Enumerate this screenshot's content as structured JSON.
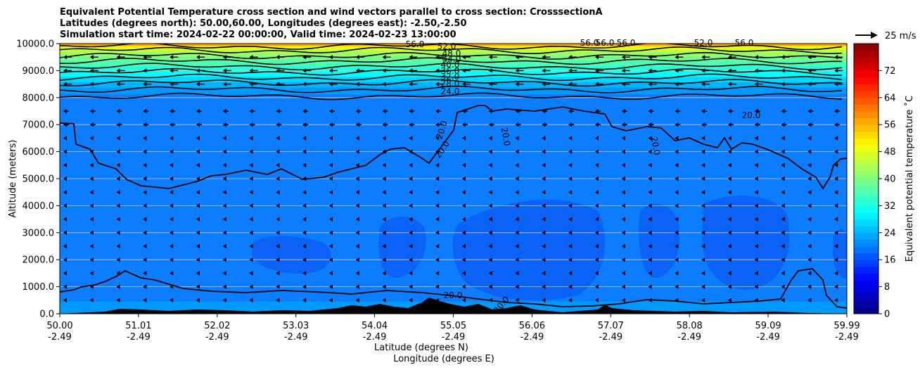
{
  "chart_data": {
    "type": "contour",
    "title_lines": [
      "Equivalent Potential Temperature cross section and wind vectors parallel to cross section: CrosssectionA",
      "Latitudes (degrees north): 50.00,60.00, Longitudes (degrees east): -2.50,-2.50",
      "Simulation start time: 2024-02-22 00:00:00, Valid time: 2024-02-23 13:00:00"
    ],
    "ylabel": "Altitude (meters)",
    "xlabel_lines": [
      "Latitude (degrees N)",
      "Longitude (degrees E)"
    ],
    "ylim": [
      0,
      10000
    ],
    "y_ticks": [
      "0.0",
      "1000.0",
      "2000.0",
      "3000.0",
      "4000.0",
      "5000.0",
      "6000.0",
      "7000.0",
      "8000.0",
      "9000.0",
      "10000.0"
    ],
    "x_ticks_lat": [
      "50.00",
      "51.01",
      "52.02",
      "53.03",
      "54.04",
      "55.05",
      "56.06",
      "57.07",
      "58.08",
      "59.09",
      "59.99"
    ],
    "x_ticks_lon": [
      "-2.49",
      "-2.49",
      "-2.49",
      "-2.49",
      "-2.49",
      "-2.49",
      "-2.49",
      "-2.49",
      "-2.49",
      "-2.49",
      "-2.49"
    ],
    "grid": "horizontal",
    "colorbar": {
      "label": "Equivalent potential temperature ˚C",
      "range": [
        0,
        80
      ],
      "ticks": [
        "0",
        "8",
        "16",
        "24",
        "32",
        "40",
        "48",
        "56",
        "64",
        "72"
      ],
      "colormap": "jet"
    },
    "quiver_key": "25 m/s",
    "contour_labels": [
      "52.0",
      "48.0",
      "44.0",
      "40.0",
      "36.0",
      "32.0",
      "28.0",
      "24.0",
      "20.0",
      "20.0",
      "20.0",
      "20.0",
      "20.0",
      "20.0",
      "20.0",
      "56.0",
      "56.0",
      "56.0",
      "56.0",
      "56.0",
      "52.0"
    ],
    "wind": "westward (pointing left) across the section, stronger aloft",
    "terrain_color": "#000000"
  }
}
